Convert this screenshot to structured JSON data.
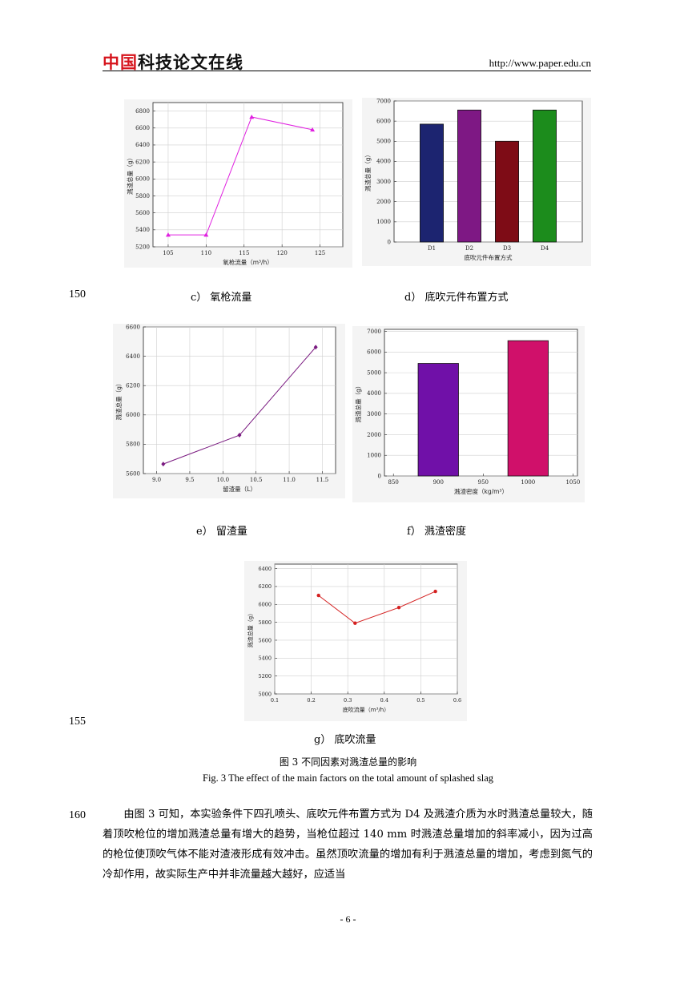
{
  "header": {
    "logo_red": "中国",
    "logo_black": "科技论文在线",
    "url": "http://www.paper.edu.cn"
  },
  "line_numbers": {
    "l150": "150",
    "l155": "155",
    "l160": "160"
  },
  "captions": {
    "c": "c）  氧枪流量",
    "d": "d）  底吹元件布置方式",
    "e": "e）  留渣量",
    "f": "f）  溅渣密度",
    "g": "g）  底吹流量"
  },
  "figure": {
    "title_zh": "图  3    不同因素对溅渣总量的影响",
    "title_en": "Fig. 3    The effect of the main factors on the total amount of splashed slag"
  },
  "paragraph": "由图 3 可知，本实验条件下四孔喷头、底吹元件布置方式为 D4 及溅渣介质为水时溅渣总量较大，随着顶吹枪位的增加溅渣总量有增大的趋势，当枪位超过 140 mm 时溅渣总量增加的斜率减小，因为过高的枪位使顶吹气体不能对渣液形成有效冲击。虽然顶吹流量的增加有利于溅渣总量的增加，考虑到氮气的冷却作用，故实际生产中并非流量越大越好，应适当",
  "page_number": "- 6 -",
  "chart_data": [
    {
      "id": "c",
      "type": "line",
      "x": [
        105,
        110,
        116,
        124
      ],
      "y": [
        5340,
        5340,
        6730,
        6580
      ],
      "xlim": [
        103,
        128
      ],
      "ylim": [
        5200,
        6900
      ],
      "xticks": [
        105,
        110,
        115,
        120,
        125
      ],
      "yticks": [
        5200,
        5400,
        5600,
        5800,
        6000,
        6200,
        6400,
        6600,
        6800
      ],
      "xlabel": "氧枪流量（m³/h）",
      "ylabel": "溅渣总量（g）",
      "color": "#e020e0",
      "marker": "triangle",
      "grid": true
    },
    {
      "id": "d",
      "type": "bar",
      "categories": [
        "D1",
        "D2",
        "D3",
        "D4"
      ],
      "values": [
        5850,
        6550,
        5000,
        6550
      ],
      "colors": [
        "#1c2470",
        "#7e1884",
        "#7e0c16",
        "#1c8c1c"
      ],
      "ylim": [
        0,
        7000
      ],
      "yticks": [
        0,
        1000,
        2000,
        3000,
        4000,
        5000,
        6000,
        7000
      ],
      "xlabel": "底吹元件布置方式",
      "ylabel": "溅渣总量（g）",
      "grid": true
    },
    {
      "id": "e",
      "type": "line",
      "x": [
        9.1,
        10.25,
        11.4
      ],
      "y": [
        5665,
        5862,
        6462
      ],
      "xlim": [
        8.8,
        11.7
      ],
      "ylim": [
        5600,
        6600
      ],
      "xticks": [
        9.0,
        9.5,
        10.0,
        10.5,
        11.0,
        11.5
      ],
      "yticks": [
        5600,
        5800,
        6000,
        6200,
        6400,
        6600
      ],
      "xlabel": "留渣量（L）",
      "ylabel": "溅渣总量（g）",
      "color": "#7a1a80",
      "marker": "diamond",
      "grid": true
    },
    {
      "id": "f",
      "type": "bar",
      "x": [
        900,
        1000
      ],
      "values": [
        5450,
        6550
      ],
      "colors": [
        "#7010a8",
        "#d0106a"
      ],
      "xlim": [
        840,
        1055
      ],
      "ylim": [
        0,
        7100
      ],
      "xticks": [
        850,
        900,
        950,
        1000,
        1050
      ],
      "yticks": [
        0,
        1000,
        2000,
        3000,
        4000,
        5000,
        6000,
        7000
      ],
      "xlabel": "溅渣密度（kg/m³）",
      "ylabel": "溅渣总量（g）",
      "grid": true
    },
    {
      "id": "g",
      "type": "line",
      "x": [
        0.22,
        0.32,
        0.44,
        0.54
      ],
      "y": [
        6100,
        5790,
        5965,
        6145
      ],
      "xlim": [
        0.1,
        0.6
      ],
      "ylim": [
        5000,
        6450
      ],
      "xticks": [
        0.1,
        0.2,
        0.3,
        0.4,
        0.5,
        0.6
      ],
      "yticks": [
        5000,
        5200,
        5400,
        5600,
        5800,
        6000,
        6200,
        6400
      ],
      "xlabel": "底吹流量（m³/h）",
      "ylabel": "溅渣总量（g）",
      "color": "#d42020",
      "marker": "circle",
      "grid": true
    }
  ]
}
